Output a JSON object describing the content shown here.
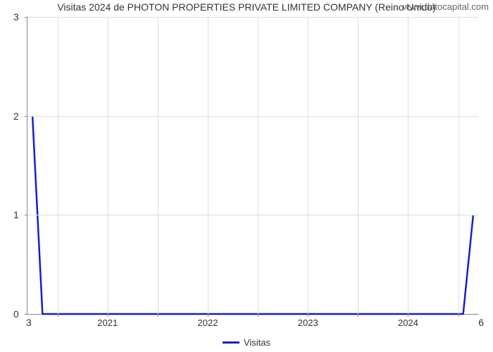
{
  "chart": {
    "type": "line",
    "title": "Visitas 2024 de PHOTON PROPERTIES PRIVATE LIMITED COMPANY (Reino Unido)",
    "watermark": "www.datocapital.com",
    "background_color": "#ffffff",
    "grid_color": "#dddddd",
    "axis_color": "#888888",
    "title_fontsize": 14,
    "x": {
      "min": 2020.2,
      "max": 2024.7,
      "ticks": [
        2021,
        2022,
        2023,
        2024
      ],
      "tick_labels": [
        "2021",
        "2022",
        "2023",
        "2024"
      ],
      "minor_ticks": [
        2020.5,
        2021.5,
        2022.5,
        2023.5,
        2024.5
      ],
      "left_end_label": "3",
      "right_end_label": "6",
      "label_fontsize": 13
    },
    "y": {
      "min": 0,
      "max": 3,
      "ticks": [
        0,
        1,
        2,
        3
      ],
      "tick_labels": [
        "0",
        "1",
        "2",
        "3"
      ],
      "label_fontsize": 14
    },
    "series": [
      {
        "name": "Visitas",
        "color": "#1520c8",
        "line_width": 2.5,
        "x": [
          2020.25,
          2020.35,
          2024.55,
          2024.65
        ],
        "y": [
          2.0,
          0.0,
          0.0,
          1.0
        ]
      }
    ],
    "legend": {
      "label": "Visitas",
      "swatch_color": "#1520c8",
      "fontsize": 13
    }
  }
}
